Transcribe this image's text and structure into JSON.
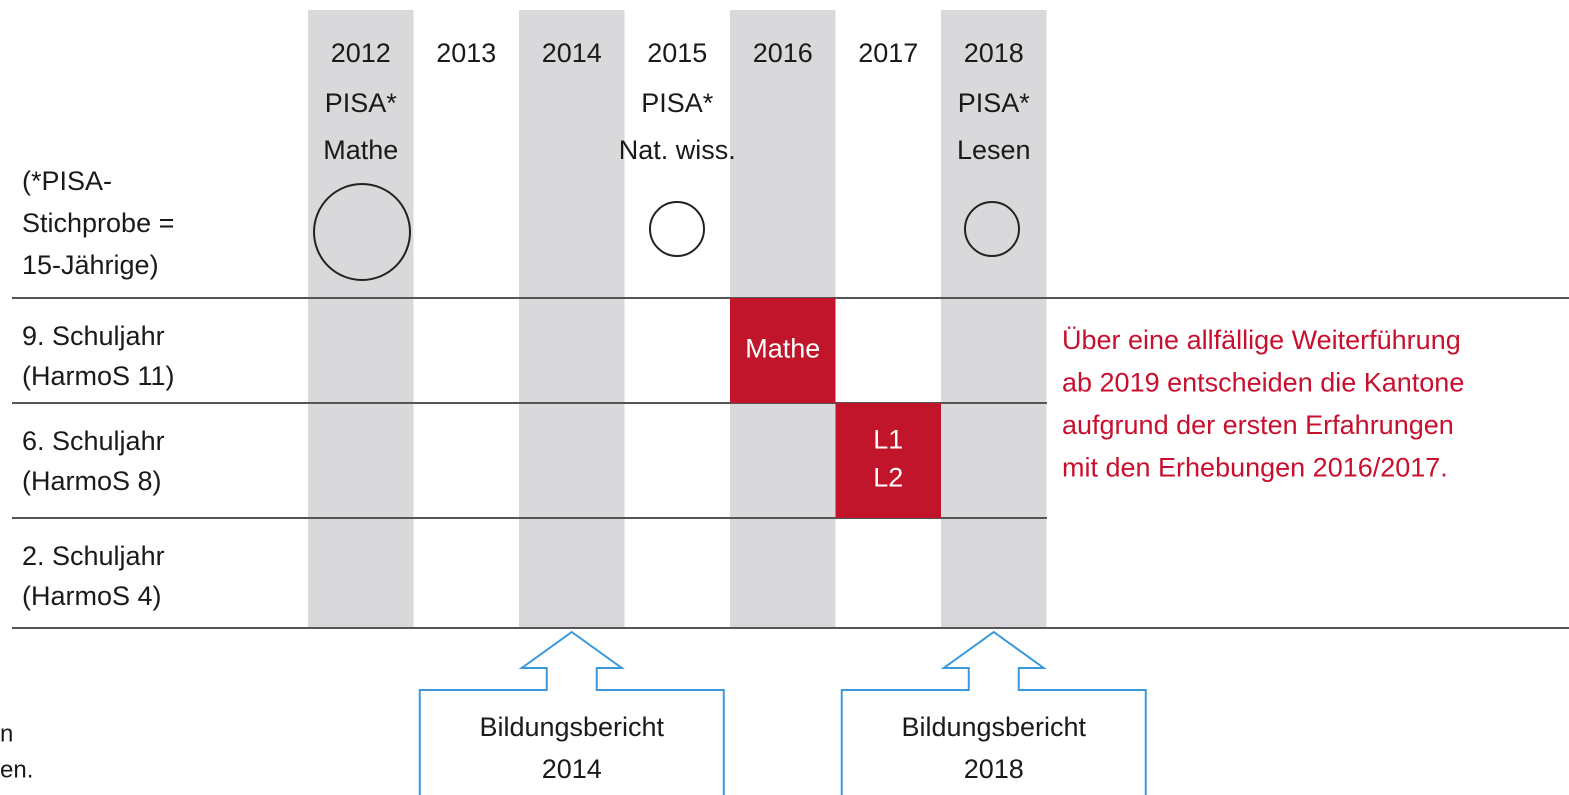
{
  "years": [
    "2012",
    "2013",
    "2014",
    "2015",
    "2016",
    "2017",
    "2018"
  ],
  "pisa": [
    {
      "year_index": 0,
      "lines": [
        "PISA*",
        "Mathe"
      ]
    },
    {
      "year_index": 3,
      "lines": [
        "PISA*",
        "Nat. wiss."
      ]
    },
    {
      "year_index": 6,
      "lines": [
        "PISA*",
        "Lesen"
      ]
    }
  ],
  "pisa_note": [
    "(*PISA-",
    "Stichprobe =",
    "15-Jährige)"
  ],
  "rows": [
    {
      "lines": [
        "9. Schuljahr",
        "(HarmoS 11)"
      ]
    },
    {
      "lines": [
        "6. Schuljahr",
        "(HarmoS 8)"
      ]
    },
    {
      "lines": [
        "2. Schuljahr",
        "(HarmoS 4)"
      ]
    }
  ],
  "cells": [
    {
      "row_index": 0,
      "year_index": 4,
      "lines": [
        "Mathe"
      ]
    },
    {
      "row_index": 1,
      "year_index": 5,
      "lines": [
        "L1",
        "L2"
      ]
    }
  ],
  "note": [
    "Über eine allfällige Weiterführung",
    "ab 2019 entscheiden die Kantone",
    "aufgrund der ersten Erfahrungen",
    "mit den Erhebungen 2016/2017."
  ],
  "reports": [
    {
      "year_index": 2,
      "lines": [
        "Bildungsbericht",
        "2014"
      ]
    },
    {
      "year_index": 6,
      "lines": [
        "Bildungsbericht",
        "2018"
      ]
    }
  ],
  "cut_text": [
    "n",
    "en."
  ]
}
